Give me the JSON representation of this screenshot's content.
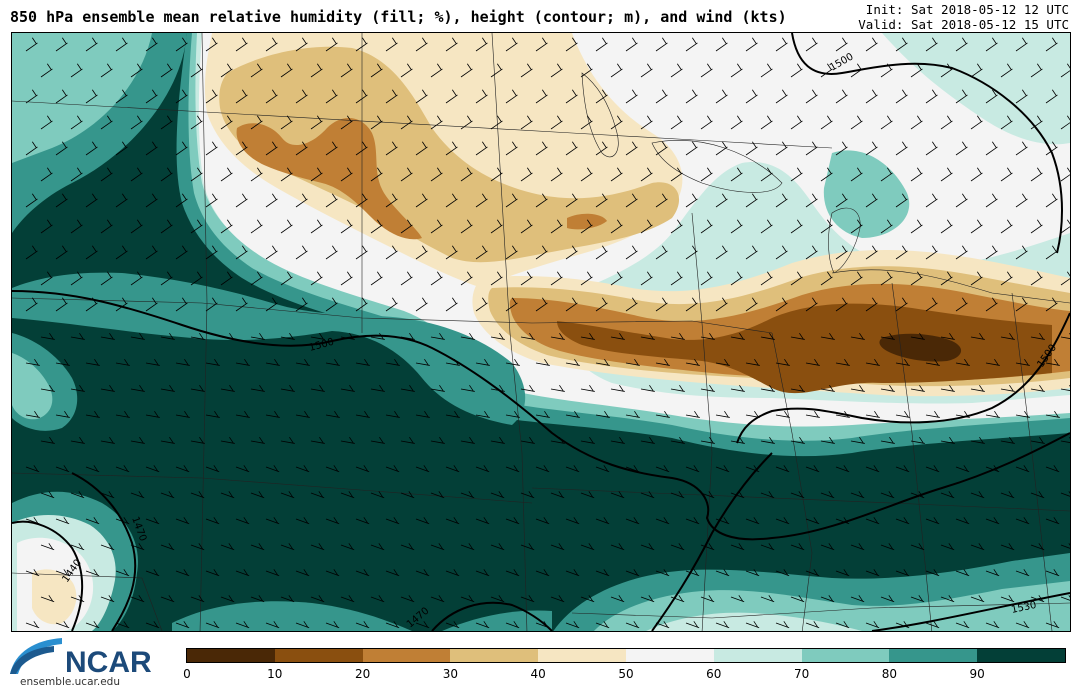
{
  "header": {
    "title": "850 hPa ensemble mean relative humidity (fill; %), height (contour; m), and wind (kts)",
    "init": "Init: Sat 2018-05-12 12 UTC",
    "valid": "Valid: Sat 2018-05-12 15 UTC"
  },
  "map": {
    "contour_labels": [
      "1500",
      "1500",
      "1500",
      "1470",
      "1440",
      "1470",
      "1530"
    ]
  },
  "colorbar": {
    "ticks": [
      "0",
      "10",
      "20",
      "30",
      "40",
      "50",
      "60",
      "70",
      "80",
      "90"
    ],
    "colors": [
      "#4a2806",
      "#8a4f0f",
      "#c07f35",
      "#dfbf7b",
      "#f6e6c2",
      "#f4f4f4",
      "#c8eae2",
      "#7fcbbe",
      "#36968c",
      "#033f37"
    ]
  },
  "logo": {
    "name": "NCAR",
    "url": "ensemble.ucar.edu"
  }
}
